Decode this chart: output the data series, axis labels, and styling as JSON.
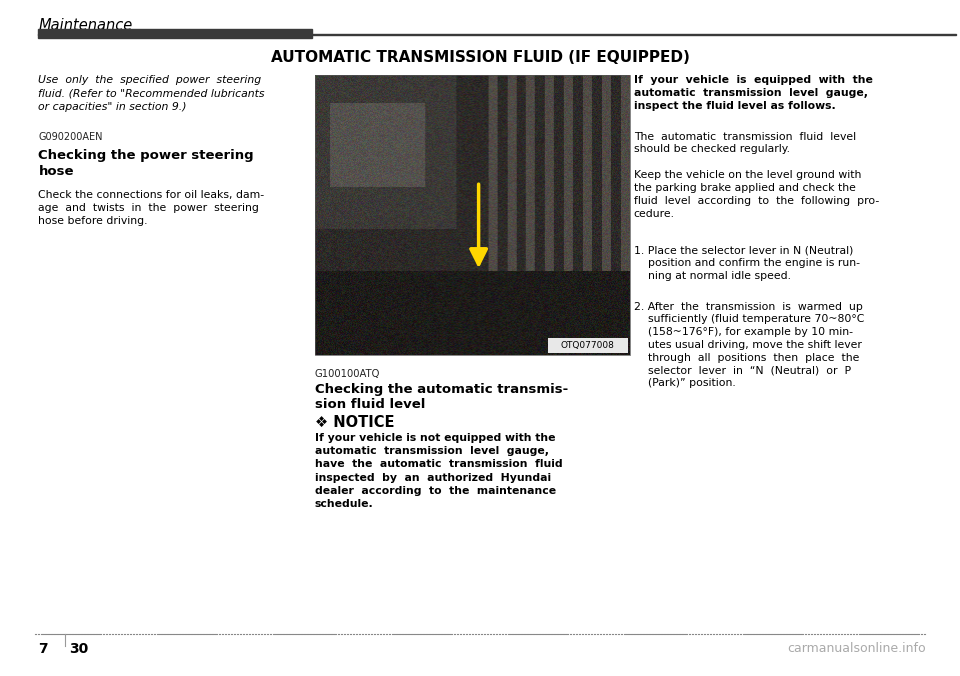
{
  "page_width": 9.6,
  "page_height": 6.76,
  "bg_color": "#ffffff",
  "header_text": "Maintenance",
  "header_bar_color": "#3a3a3a",
  "section_title": "AUTOMATIC TRANSMISSION FLUID (IF EQUIPPED)",
  "footer_dotted_color": "#888888",
  "footer_page_num": "7",
  "footer_page_num2": "30",
  "footer_watermark": "carmanualsonline.info",
  "col1_italic_line1": "Use  only  the  specified  power  steering",
  "col1_italic_line2": "fluid. (Refer to \"Recommended lubricants",
  "col1_italic_line3": "or capacities\" in section 9.)",
  "col1_code": "G090200AEN",
  "col1_heading": "Checking the power steering\nhose",
  "col1_body": "Check the connections for oil leaks, dam-\nage  and  twists  in  the  power  steering\nhose before driving.",
  "col3_heading_bold": "If  your  vehicle  is  equipped  with  the\nautomatic  transmission  level  gauge,\ninspect the fluid level as follows.",
  "col3_para1": "The  automatic  transmission  fluid  level\nshould be checked regularly.",
  "col3_para2": "Keep the vehicle on the level ground with\nthe parking brake applied and check the\nfluid  level  according  to  the  following  pro-\ncedure.",
  "col3_para3": "1. Place the selector lever in N (Neutral)\n    position and confirm the engine is run-\n    ning at normal idle speed.",
  "col3_para4": "2. After  the  transmission  is  warmed  up\n    sufficiently (fluid temperature 70~80°C\n    (158~176°F), for example by 10 min-\n    utes usual driving, move the shift lever\n    through  all  positions  then  place  the\n    selector  lever  in  “N  (Neutral)  or  P\n    (Park)” position.",
  "col2_fig_label": "OTQ077008",
  "col2_code": "G100100ATQ",
  "col2_subheading": "Checking the automatic transmis-\nsion fluid level",
  "col2_notice_title": "❖ NOTICE",
  "col2_notice_body": "If your vehicle is not equipped with the\nautomatic  transmission  level  gauge,\nhave  the  automatic  transmission  fluid\ninspected  by  an  authorized  Hyundai\ndealer  according  to  the  maintenance\nschedule.",
  "img_colors": [
    "#4a4a4a",
    "#5a5050",
    "#383838",
    "#4a4040",
    "#505050",
    "#3a3a3a",
    "#484848",
    "#404040"
  ],
  "arrow_color": "#FFD700"
}
